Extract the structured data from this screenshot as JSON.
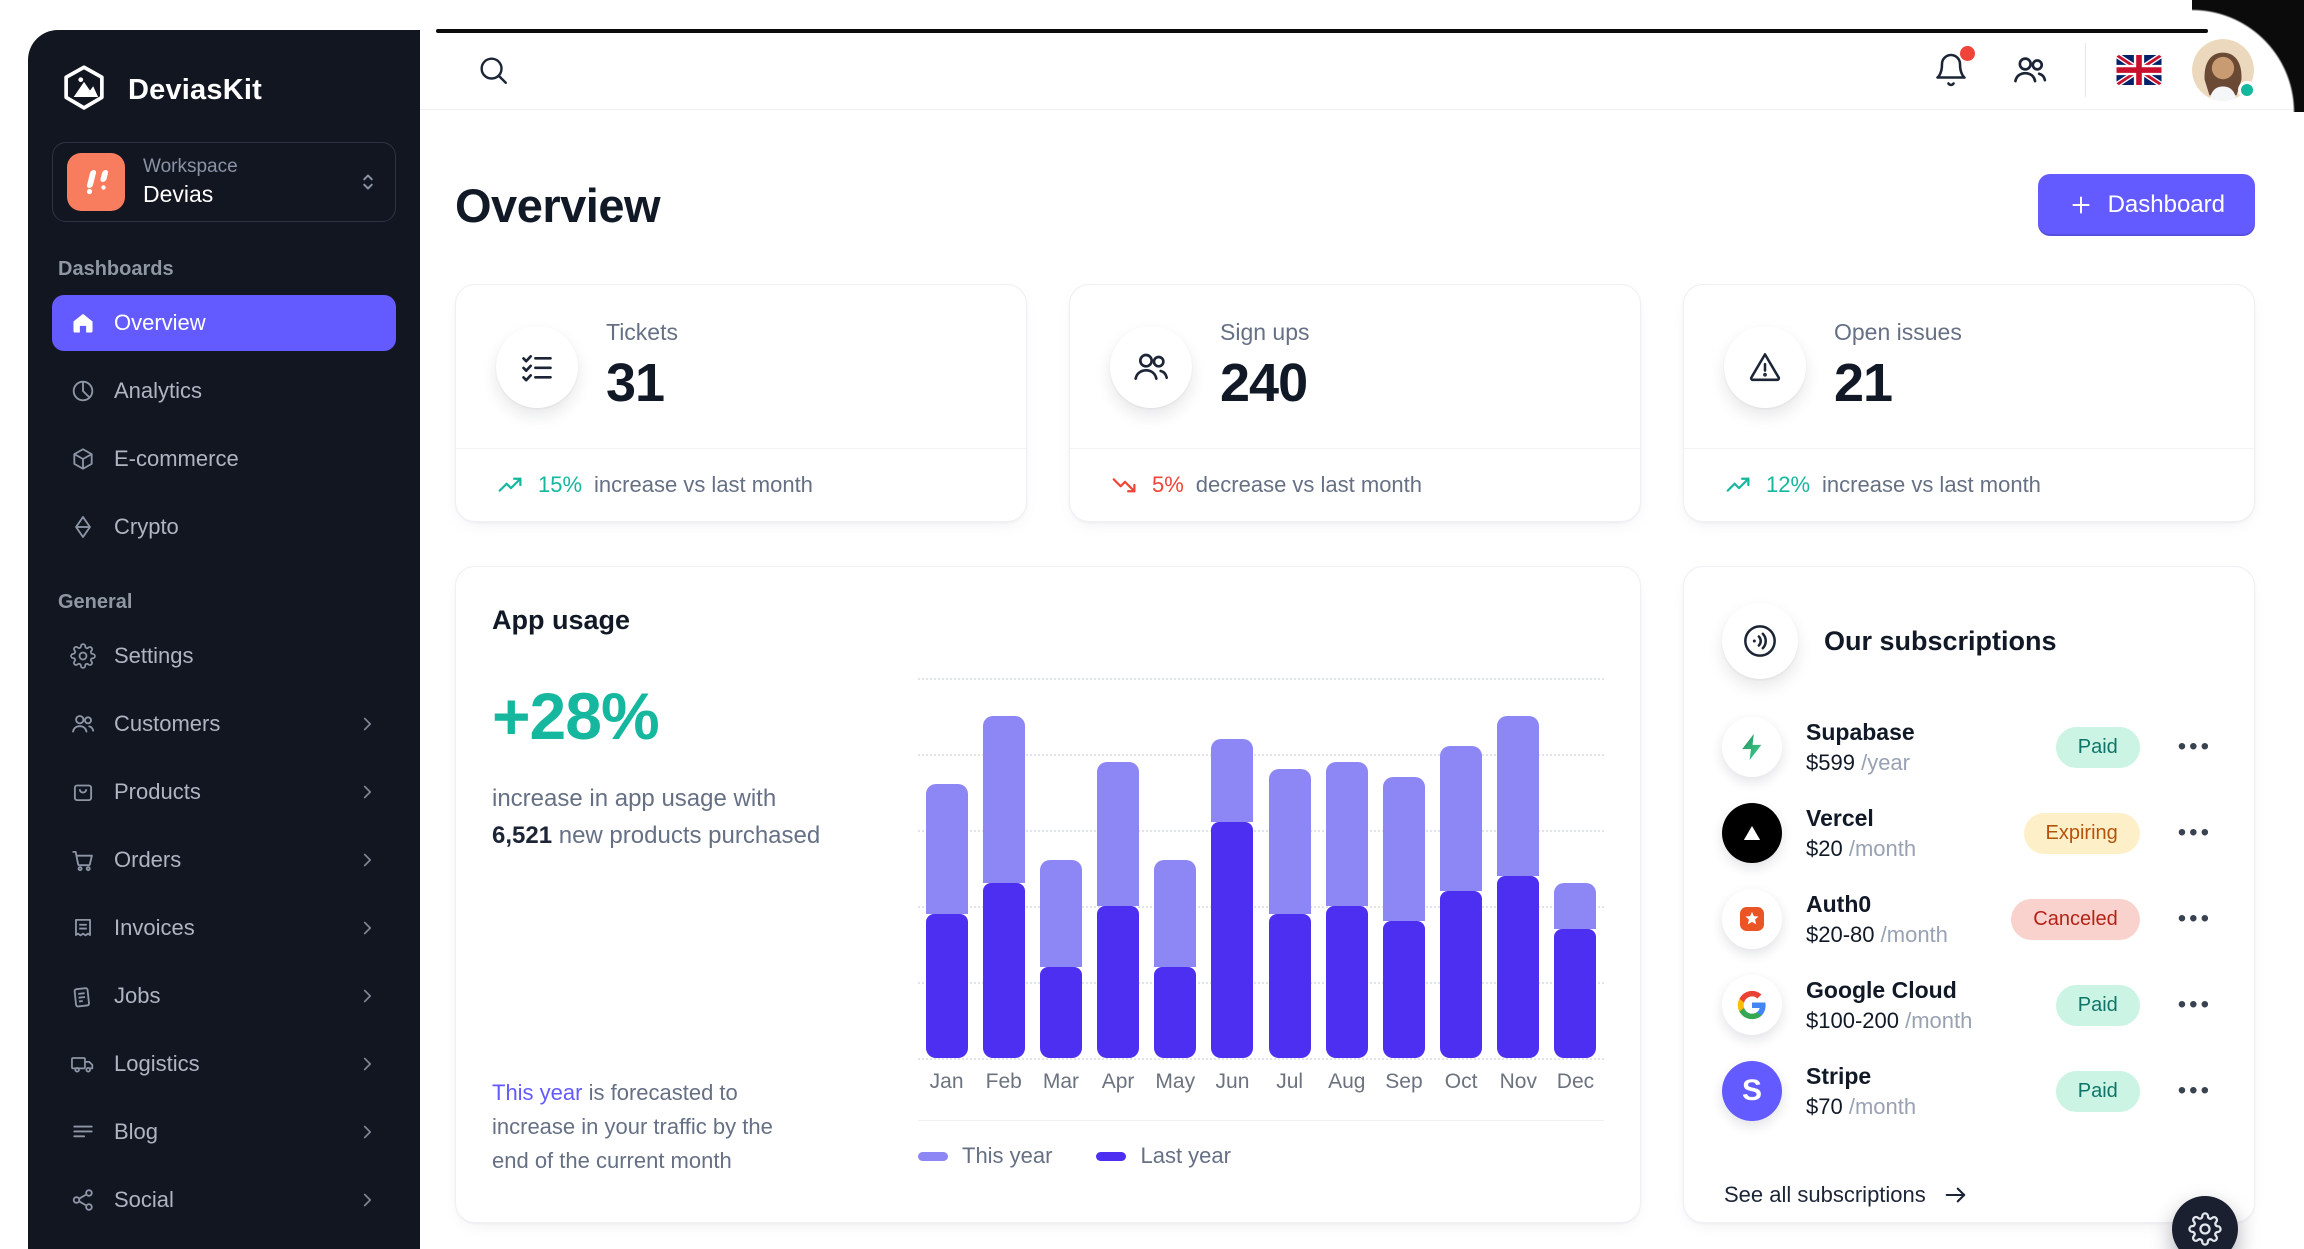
{
  "app": {
    "brand": "DeviasKit"
  },
  "sidebar": {
    "workspace": {
      "label": "Workspace",
      "value": "Devias"
    },
    "sections": [
      {
        "label": "Dashboards",
        "items": [
          {
            "label": "Overview",
            "active": true
          },
          {
            "label": "Analytics"
          },
          {
            "label": "E-commerce"
          },
          {
            "label": "Crypto"
          }
        ]
      },
      {
        "label": "General",
        "items": [
          {
            "label": "Settings"
          },
          {
            "label": "Customers",
            "chevron": true
          },
          {
            "label": "Products",
            "chevron": true
          },
          {
            "label": "Orders",
            "chevron": true
          },
          {
            "label": "Invoices",
            "chevron": true
          },
          {
            "label": "Jobs",
            "chevron": true
          },
          {
            "label": "Logistics",
            "chevron": true
          },
          {
            "label": "Blog",
            "chevron": true
          },
          {
            "label": "Social",
            "chevron": true
          }
        ]
      }
    ]
  },
  "topbar": {
    "icons": [
      "search-icon",
      "bell-icon",
      "contacts-icon"
    ],
    "has_notification": true,
    "language": "UK"
  },
  "header": {
    "title": "Overview",
    "dashboard_button": "Dashboard"
  },
  "stats": [
    {
      "label": "Tickets",
      "value": "31",
      "icon": "checklist-icon",
      "trend": "up",
      "percent": "15%",
      "suffix": "increase vs last month"
    },
    {
      "label": "Sign ups",
      "value": "240",
      "icon": "users-icon",
      "trend": "down",
      "percent": "5%",
      "suffix": "decrease vs last month"
    },
    {
      "label": "Open issues",
      "value": "21",
      "icon": "warning-icon",
      "trend": "up",
      "percent": "12%",
      "suffix": "increase vs last month"
    }
  ],
  "app_usage": {
    "title": "App usage",
    "highlight": "+28%",
    "desc_pre": "increase in app usage with",
    "desc_value": "6,521",
    "desc_post": "new products purchased",
    "forecast_link": "This year",
    "forecast_rest": " is forecasted to increase in your traffic by the end of the current month"
  },
  "chart_data": {
    "type": "bar",
    "stacked": true,
    "title": "App usage",
    "xlabel": "",
    "ylabel": "",
    "categories": [
      "Jan",
      "Feb",
      "Mar",
      "Apr",
      "May",
      "Jun",
      "Jul",
      "Aug",
      "Sep",
      "Oct",
      "Nov",
      "Dec"
    ],
    "series": [
      {
        "name": "This year",
        "color": "#8d86f5",
        "values": [
          8.5,
          11,
          7,
          9.5,
          7,
          5.5,
          9.5,
          9.5,
          9.5,
          9.5,
          10.5,
          3
        ]
      },
      {
        "name": "Last year",
        "color": "#4d2ff2",
        "values": [
          9.5,
          11.5,
          6,
          10,
          6,
          15.5,
          9.5,
          10,
          9,
          11,
          12,
          8.5
        ]
      }
    ],
    "ylim": [
      0,
      25
    ],
    "gridlines": 6,
    "grid_style": "dotted",
    "legend_position": "bottom"
  },
  "subscriptions": {
    "title": "Our subscriptions",
    "items": [
      {
        "name": "Supabase",
        "price": "$599",
        "period": "/year",
        "status": "Paid"
      },
      {
        "name": "Vercel",
        "price": "$20",
        "period": "/month",
        "status": "Expiring"
      },
      {
        "name": "Auth0",
        "price": "$20-80",
        "period": "/month",
        "status": "Canceled"
      },
      {
        "name": "Google Cloud",
        "price": "$100-200",
        "period": "/month",
        "status": "Paid"
      },
      {
        "name": "Stripe",
        "price": "$70",
        "period": "/month",
        "status": "Paid"
      }
    ],
    "footer": "See all subscriptions"
  },
  "icons": {
    "menu_dots": "•••"
  },
  "colors": {
    "primary": "#635bff",
    "sidebar_bg": "#121621",
    "success": "#15b79e",
    "error": "#f04438",
    "bar_light": "#8d86f5",
    "bar_dark": "#4d2ff2",
    "paid_bg": "#cbf4e4",
    "paid_text": "#107569",
    "expiring_bg": "#fdf0c9",
    "expiring_text": "#b45309",
    "canceled_bg": "#f9d2cd",
    "canceled_text": "#b42318"
  }
}
